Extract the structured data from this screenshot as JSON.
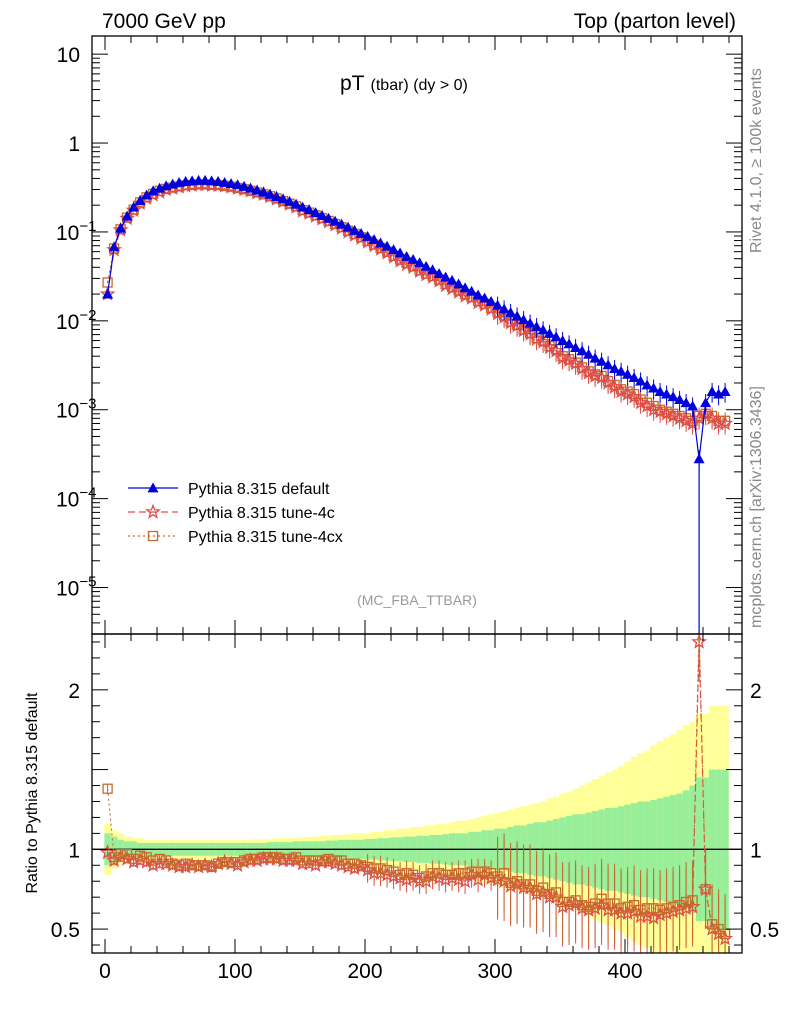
{
  "header": {
    "left_title": "7000 GeV pp",
    "right_title": "Top (parton level)"
  },
  "side_labels": {
    "rivet": "Rivet 4.1.0, ≥ 100k events",
    "mcplots": "mcplots.cern.ch [arXiv:1306.3436]"
  },
  "colors": {
    "default": "#0000dd",
    "tune4c": "#e34a4a",
    "tune4cx": "#c46a2a",
    "band_inner": "#99ef99",
    "band_outer": "#ffff99"
  },
  "chart_data": [
    {
      "type": "line",
      "panel": "main",
      "title": "pT",
      "title_sub": "(tbar) (dy > 0)",
      "watermark": "(MC_FBA_TTBAR)",
      "xlim": [
        -10,
        490
      ],
      "yscale": "log",
      "ylim": [
        3e-06,
        16
      ],
      "y_ticks": [
        {
          "value": 10,
          "mant": "10",
          "exp": ""
        },
        {
          "value": 1,
          "mant": "1",
          "exp": ""
        },
        {
          "value": 0.1,
          "mant": "10",
          "exp": "−1"
        },
        {
          "value": 0.01,
          "mant": "10",
          "exp": "−2"
        },
        {
          "value": 0.001,
          "mant": "10",
          "exp": "−3"
        },
        {
          "value": 0.0001,
          "mant": "10",
          "exp": "−4"
        },
        {
          "value": 1e-05,
          "mant": "10",
          "exp": "−5"
        }
      ],
      "legend": [
        {
          "label": "Pythia 8.315 default",
          "series": "default"
        },
        {
          "label": "Pythia 8.315 tune-4c",
          "series": "tune4c"
        },
        {
          "label": "Pythia 8.315 tune-4cx",
          "series": "tune4cx"
        }
      ],
      "x": [
        2,
        7,
        12,
        17,
        22,
        27,
        32,
        37,
        42,
        47,
        52,
        57,
        62,
        67,
        72,
        77,
        82,
        87,
        92,
        97,
        102,
        107,
        112,
        117,
        122,
        127,
        132,
        137,
        142,
        147,
        152,
        157,
        162,
        167,
        172,
        177,
        182,
        187,
        192,
        197,
        202,
        207,
        212,
        217,
        222,
        227,
        232,
        237,
        242,
        247,
        252,
        257,
        262,
        267,
        272,
        277,
        282,
        287,
        292,
        297,
        302,
        307,
        312,
        317,
        322,
        327,
        332,
        337,
        342,
        347,
        352,
        357,
        362,
        367,
        372,
        377,
        382,
        387,
        392,
        397,
        402,
        407,
        412,
        417,
        422,
        427,
        432,
        437,
        442,
        447,
        452,
        457,
        462,
        467,
        472,
        477
      ],
      "series": [
        {
          "name": "Pythia 8.315 default",
          "key": "default",
          "values": [
            0.02,
            0.068,
            0.11,
            0.15,
            0.19,
            0.225,
            0.26,
            0.29,
            0.31,
            0.33,
            0.345,
            0.36,
            0.37,
            0.375,
            0.38,
            0.38,
            0.375,
            0.37,
            0.36,
            0.35,
            0.34,
            0.325,
            0.31,
            0.295,
            0.28,
            0.265,
            0.25,
            0.235,
            0.22,
            0.205,
            0.19,
            0.178,
            0.165,
            0.153,
            0.142,
            0.132,
            0.122,
            0.113,
            0.104,
            0.096,
            0.089,
            0.082,
            0.075,
            0.069,
            0.063,
            0.058,
            0.053,
            0.049,
            0.045,
            0.041,
            0.0375,
            0.034,
            0.031,
            0.0285,
            0.026,
            0.0235,
            0.0215,
            0.0195,
            0.018,
            0.0165,
            0.015,
            0.0136,
            0.0124,
            0.0113,
            0.0103,
            0.0094,
            0.0086,
            0.0079,
            0.0072,
            0.0066,
            0.006,
            0.0055,
            0.005,
            0.0046,
            0.0042,
            0.0038,
            0.0035,
            0.0032,
            0.0029,
            0.0027,
            0.0025,
            0.0023,
            0.0021,
            0.0019,
            0.00175,
            0.0016,
            0.0015,
            0.0014,
            0.0013,
            0.0012,
            0.0011,
            0.00028,
            0.0012,
            0.0016,
            0.0015,
            0.0016
          ]
        },
        {
          "name": "Pythia 8.315 tune-4c",
          "key": "tune4c",
          "values": [
            0.02,
            0.063,
            0.105,
            0.142,
            0.175,
            0.21,
            0.24,
            0.26,
            0.28,
            0.3,
            0.31,
            0.32,
            0.33,
            0.335,
            0.34,
            0.34,
            0.335,
            0.335,
            0.33,
            0.32,
            0.31,
            0.3,
            0.29,
            0.275,
            0.265,
            0.25,
            0.235,
            0.22,
            0.205,
            0.19,
            0.172,
            0.162,
            0.15,
            0.14,
            0.13,
            0.12,
            0.11,
            0.1,
            0.092,
            0.085,
            0.077,
            0.07,
            0.064,
            0.058,
            0.052,
            0.047,
            0.043,
            0.04,
            0.036,
            0.033,
            0.031,
            0.028,
            0.025,
            0.023,
            0.021,
            0.019,
            0.018,
            0.016,
            0.015,
            0.0135,
            0.012,
            0.011,
            0.0095,
            0.0088,
            0.0078,
            0.0071,
            0.0062,
            0.0058,
            0.005,
            0.0046,
            0.0038,
            0.0036,
            0.0033,
            0.0029,
            0.0026,
            0.0024,
            0.0023,
            0.002,
            0.0018,
            0.0016,
            0.0015,
            0.0014,
            0.0012,
            0.0011,
            0.001,
            0.00095,
            0.0009,
            0.00085,
            0.0008,
            0.00075,
            0.0007,
            0.0008,
            0.0009,
            0.0008,
            0.0007,
            0.0007
          ]
        },
        {
          "name": "Pythia 8.315 tune-4cx",
          "key": "tune4cx",
          "values": [
            0.027,
            0.065,
            0.107,
            0.145,
            0.178,
            0.215,
            0.245,
            0.268,
            0.29,
            0.305,
            0.315,
            0.325,
            0.335,
            0.338,
            0.342,
            0.342,
            0.338,
            0.336,
            0.33,
            0.322,
            0.312,
            0.302,
            0.29,
            0.278,
            0.265,
            0.252,
            0.238,
            0.222,
            0.208,
            0.194,
            0.176,
            0.165,
            0.154,
            0.143,
            0.133,
            0.123,
            0.113,
            0.103,
            0.095,
            0.087,
            0.079,
            0.072,
            0.066,
            0.06,
            0.054,
            0.049,
            0.045,
            0.041,
            0.037,
            0.034,
            0.032,
            0.029,
            0.026,
            0.024,
            0.022,
            0.02,
            0.0185,
            0.0168,
            0.0155,
            0.014,
            0.0125,
            0.0115,
            0.0098,
            0.009,
            0.008,
            0.0073,
            0.0064,
            0.006,
            0.0052,
            0.0048,
            0.004,
            0.0037,
            0.0034,
            0.003,
            0.0027,
            0.0025,
            0.0024,
            0.0021,
            0.0019,
            0.0017,
            0.0016,
            0.0015,
            0.0013,
            0.0012,
            0.0011,
            0.001,
            0.00095,
            0.0009,
            0.00085,
            0.0008,
            0.00075,
            0.00085,
            0.0009,
            0.00085,
            0.00075,
            0.00075
          ]
        }
      ]
    },
    {
      "type": "line",
      "panel": "ratio",
      "ylabel": "Ratio to Pythia 8.315 default",
      "xlim": [
        -10,
        490
      ],
      "ylim": [
        0.35,
        2.35
      ],
      "y_ticks": [
        0.5,
        1,
        2
      ],
      "x_ticks": [
        0,
        100,
        200,
        300,
        400
      ],
      "x": [
        2,
        7,
        12,
        17,
        22,
        27,
        32,
        37,
        42,
        47,
        52,
        57,
        62,
        67,
        72,
        77,
        82,
        87,
        92,
        97,
        102,
        107,
        112,
        117,
        122,
        127,
        132,
        137,
        142,
        147,
        152,
        157,
        162,
        167,
        172,
        177,
        182,
        187,
        192,
        197,
        202,
        207,
        212,
        217,
        222,
        227,
        232,
        237,
        242,
        247,
        252,
        257,
        262,
        267,
        272,
        277,
        282,
        287,
        292,
        297,
        302,
        307,
        312,
        317,
        322,
        327,
        332,
        337,
        342,
        347,
        352,
        357,
        362,
        367,
        372,
        377,
        382,
        387,
        392,
        397,
        402,
        407,
        412,
        417,
        422,
        427,
        432,
        437,
        442,
        447,
        452,
        457,
        462,
        467,
        472,
        477
      ],
      "band_inner": [
        0.1,
        0.08,
        0.06,
        0.05,
        0.05,
        0.04,
        0.04,
        0.04,
        0.04,
        0.04,
        0.04,
        0.04,
        0.04,
        0.04,
        0.04,
        0.04,
        0.04,
        0.04,
        0.04,
        0.04,
        0.04,
        0.04,
        0.04,
        0.04,
        0.04,
        0.045,
        0.045,
        0.045,
        0.045,
        0.05,
        0.05,
        0.05,
        0.05,
        0.05,
        0.055,
        0.055,
        0.06,
        0.06,
        0.06,
        0.06,
        0.065,
        0.065,
        0.07,
        0.07,
        0.075,
        0.075,
        0.08,
        0.08,
        0.085,
        0.085,
        0.09,
        0.09,
        0.095,
        0.1,
        0.1,
        0.1,
        0.11,
        0.11,
        0.12,
        0.12,
        0.13,
        0.13,
        0.14,
        0.15,
        0.15,
        0.16,
        0.17,
        0.17,
        0.18,
        0.19,
        0.2,
        0.21,
        0.22,
        0.22,
        0.23,
        0.24,
        0.25,
        0.26,
        0.26,
        0.27,
        0.28,
        0.29,
        0.3,
        0.3,
        0.31,
        0.32,
        0.33,
        0.34,
        0.35,
        0.37,
        0.4,
        0.45,
        0.45,
        0.5,
        0.5,
        0.5
      ],
      "band_outer": [
        0.16,
        0.12,
        0.1,
        0.08,
        0.07,
        0.07,
        0.06,
        0.06,
        0.06,
        0.06,
        0.06,
        0.06,
        0.06,
        0.06,
        0.06,
        0.06,
        0.06,
        0.06,
        0.06,
        0.06,
        0.06,
        0.06,
        0.06,
        0.065,
        0.065,
        0.065,
        0.07,
        0.07,
        0.07,
        0.075,
        0.075,
        0.08,
        0.08,
        0.085,
        0.085,
        0.09,
        0.09,
        0.095,
        0.1,
        0.1,
        0.1,
        0.11,
        0.11,
        0.12,
        0.12,
        0.13,
        0.13,
        0.14,
        0.14,
        0.15,
        0.15,
        0.16,
        0.16,
        0.17,
        0.18,
        0.18,
        0.19,
        0.2,
        0.21,
        0.22,
        0.23,
        0.24,
        0.25,
        0.26,
        0.27,
        0.28,
        0.29,
        0.3,
        0.32,
        0.33,
        0.35,
        0.36,
        0.38,
        0.4,
        0.42,
        0.44,
        0.46,
        0.48,
        0.5,
        0.52,
        0.55,
        0.58,
        0.6,
        0.62,
        0.65,
        0.68,
        0.7,
        0.72,
        0.75,
        0.78,
        0.8,
        0.85,
        0.85,
        0.9,
        0.9,
        0.9
      ],
      "series": [
        {
          "name": "Pythia 8.315 tune-4c",
          "key": "tune4c",
          "values": [
            0.98,
            0.93,
            0.95,
            0.94,
            0.92,
            0.93,
            0.92,
            0.9,
            0.91,
            0.91,
            0.9,
            0.89,
            0.89,
            0.9,
            0.89,
            0.9,
            0.89,
            0.91,
            0.92,
            0.91,
            0.9,
            0.92,
            0.93,
            0.93,
            0.94,
            0.94,
            0.94,
            0.93,
            0.93,
            0.93,
            0.91,
            0.91,
            0.9,
            0.92,
            0.92,
            0.91,
            0.9,
            0.89,
            0.88,
            0.89,
            0.87,
            0.85,
            0.85,
            0.84,
            0.83,
            0.82,
            0.81,
            0.82,
            0.8,
            0.8,
            0.83,
            0.82,
            0.81,
            0.82,
            0.81,
            0.8,
            0.84,
            0.81,
            0.84,
            0.82,
            0.81,
            0.8,
            0.77,
            0.78,
            0.76,
            0.76,
            0.72,
            0.73,
            0.7,
            0.7,
            0.64,
            0.65,
            0.66,
            0.63,
            0.62,
            0.63,
            0.65,
            0.62,
            0.62,
            0.6,
            0.6,
            0.61,
            0.58,
            0.58,
            0.57,
            0.59,
            0.6,
            0.61,
            0.62,
            0.63,
            0.64,
            2.3,
            0.75,
            0.5,
            0.47,
            0.44
          ]
        },
        {
          "name": "Pythia 8.315 tune-4cx",
          "key": "tune4cx",
          "values": [
            1.38,
            0.95,
            0.97,
            0.97,
            0.94,
            0.96,
            0.95,
            0.93,
            0.94,
            0.93,
            0.91,
            0.9,
            0.91,
            0.9,
            0.9,
            0.9,
            0.89,
            0.91,
            0.92,
            0.92,
            0.92,
            0.93,
            0.94,
            0.94,
            0.95,
            0.95,
            0.95,
            0.94,
            0.94,
            0.95,
            0.93,
            0.93,
            0.93,
            0.93,
            0.94,
            0.93,
            0.93,
            0.91,
            0.91,
            0.9,
            0.89,
            0.88,
            0.88,
            0.87,
            0.86,
            0.84,
            0.85,
            0.84,
            0.82,
            0.83,
            0.85,
            0.85,
            0.84,
            0.84,
            0.85,
            0.85,
            0.86,
            0.86,
            0.86,
            0.85,
            0.83,
            0.85,
            0.79,
            0.8,
            0.78,
            0.78,
            0.74,
            0.76,
            0.72,
            0.73,
            0.67,
            0.67,
            0.68,
            0.65,
            0.64,
            0.66,
            0.69,
            0.66,
            0.66,
            0.63,
            0.64,
            0.65,
            0.62,
            0.63,
            0.63,
            0.62,
            0.63,
            0.64,
            0.65,
            0.67,
            0.68,
            2.4,
            0.75,
            0.53,
            0.5,
            0.47
          ]
        }
      ]
    }
  ]
}
